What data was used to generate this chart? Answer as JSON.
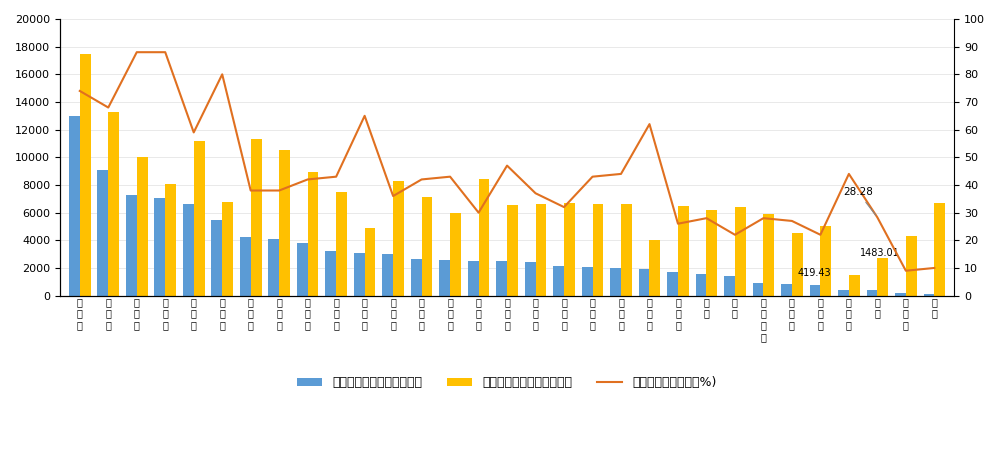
{
  "categories": [
    "广东省",
    "江苏省",
    "浙江省",
    "上海市",
    "山东省",
    "北京市",
    "四川省",
    "河南省",
    "河北省",
    "安徽省",
    "福建省",
    "湖南省",
    "辽宁省",
    "湖北省",
    "江西省",
    "山西省",
    "陕西省",
    "云南省",
    "重庆市",
    "内蒙古",
    "天津市",
    "贵州省",
    "广西",
    "新疆",
    "黑龙江省",
    "吉林省",
    "甘肃省",
    "海南省",
    "宁夏",
    "青海省",
    "西藏"
  ],
  "revenue": [
    13000,
    9100,
    7250,
    7050,
    6600,
    5450,
    4250,
    4100,
    3800,
    3200,
    3050,
    3000,
    2650,
    2550,
    2500,
    2500,
    2450,
    2150,
    2050,
    2000,
    1900,
    1700,
    1550,
    1400,
    900,
    850,
    750,
    419.43,
    400,
    200,
    150
  ],
  "expenditure": [
    17500,
    13300,
    10000,
    8050,
    11200,
    6800,
    11300,
    10500,
    8950,
    7500,
    4900,
    8300,
    7100,
    6000,
    8450,
    6550,
    6600,
    6700,
    6600,
    6600,
    4000,
    6500,
    6200,
    6400,
    5900,
    4550,
    5000,
    1483.01,
    2700,
    4300,
    6700
  ],
  "balance_rate": [
    74,
    68,
    88,
    88,
    59,
    80,
    38,
    38,
    42,
    43,
    65,
    36,
    42,
    43,
    30,
    47,
    37,
    32,
    43,
    44,
    62,
    26,
    28,
    22,
    28,
    27,
    22,
    44,
    28.28,
    9,
    10
  ],
  "revenue_color": "#5B9BD5",
  "expenditure_color": "#FFC000",
  "balance_color": "#E07020",
  "ylim_left": [
    0,
    20000
  ],
  "ylim_right": [
    0,
    100
  ],
  "yticks_left": [
    0,
    2000,
    4000,
    6000,
    8000,
    10000,
    12000,
    14000,
    16000,
    18000,
    20000
  ],
  "yticks_right": [
    0,
    10,
    20,
    30,
    40,
    50,
    60,
    70,
    80,
    90,
    100
  ],
  "legend_labels": [
    "一般公共预算收入（亿元）",
    "一般公共预算支出（亿元）",
    "财政平衡率（右轴，%)"
  ],
  "fig_width": 10.0,
  "fig_height": 4.63,
  "annotation_28_text": "28.28",
  "annotation_28_index": 28,
  "annotation_1483_text": "1483.01",
  "annotation_1483_index": 27,
  "annotation_419_text": "419.43",
  "annotation_419_index": 27
}
